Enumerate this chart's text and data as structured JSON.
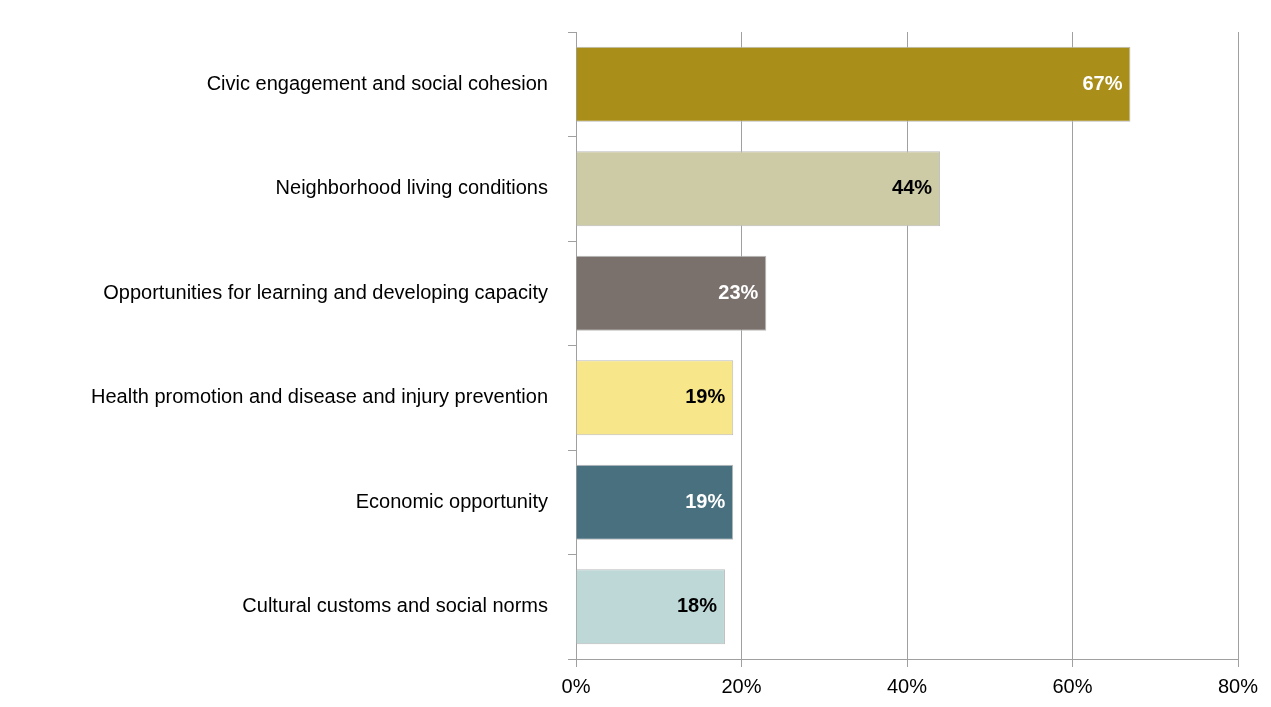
{
  "chart_data": {
    "type": "bar",
    "orientation": "horizontal",
    "categories": [
      "Civic engagement and social cohesion",
      "Neighborhood living conditions",
      "Opportunities for learning and developing capacity",
      "Health promotion and disease and injury prevention",
      "Economic opportunity",
      "Cultural customs and social norms"
    ],
    "values": [
      67,
      44,
      23,
      19,
      19,
      18
    ],
    "colors": [
      "#a98e1a",
      "#cdcaa6",
      "#7a706c",
      "#f8e68a",
      "#48707f",
      "#bed8d8"
    ],
    "value_labels": [
      "67%",
      "44%",
      "23%",
      "19%",
      "19%",
      "18%"
    ],
    "xlim": [
      0,
      80
    ],
    "xticks": [
      {
        "value": 0,
        "label": "0%"
      },
      {
        "value": 20,
        "label": "20%"
      },
      {
        "value": 40,
        "label": "40%"
      },
      {
        "value": 60,
        "label": "60%"
      },
      {
        "value": 80,
        "label": "80%"
      }
    ],
    "grid": "x",
    "legend": false
  }
}
